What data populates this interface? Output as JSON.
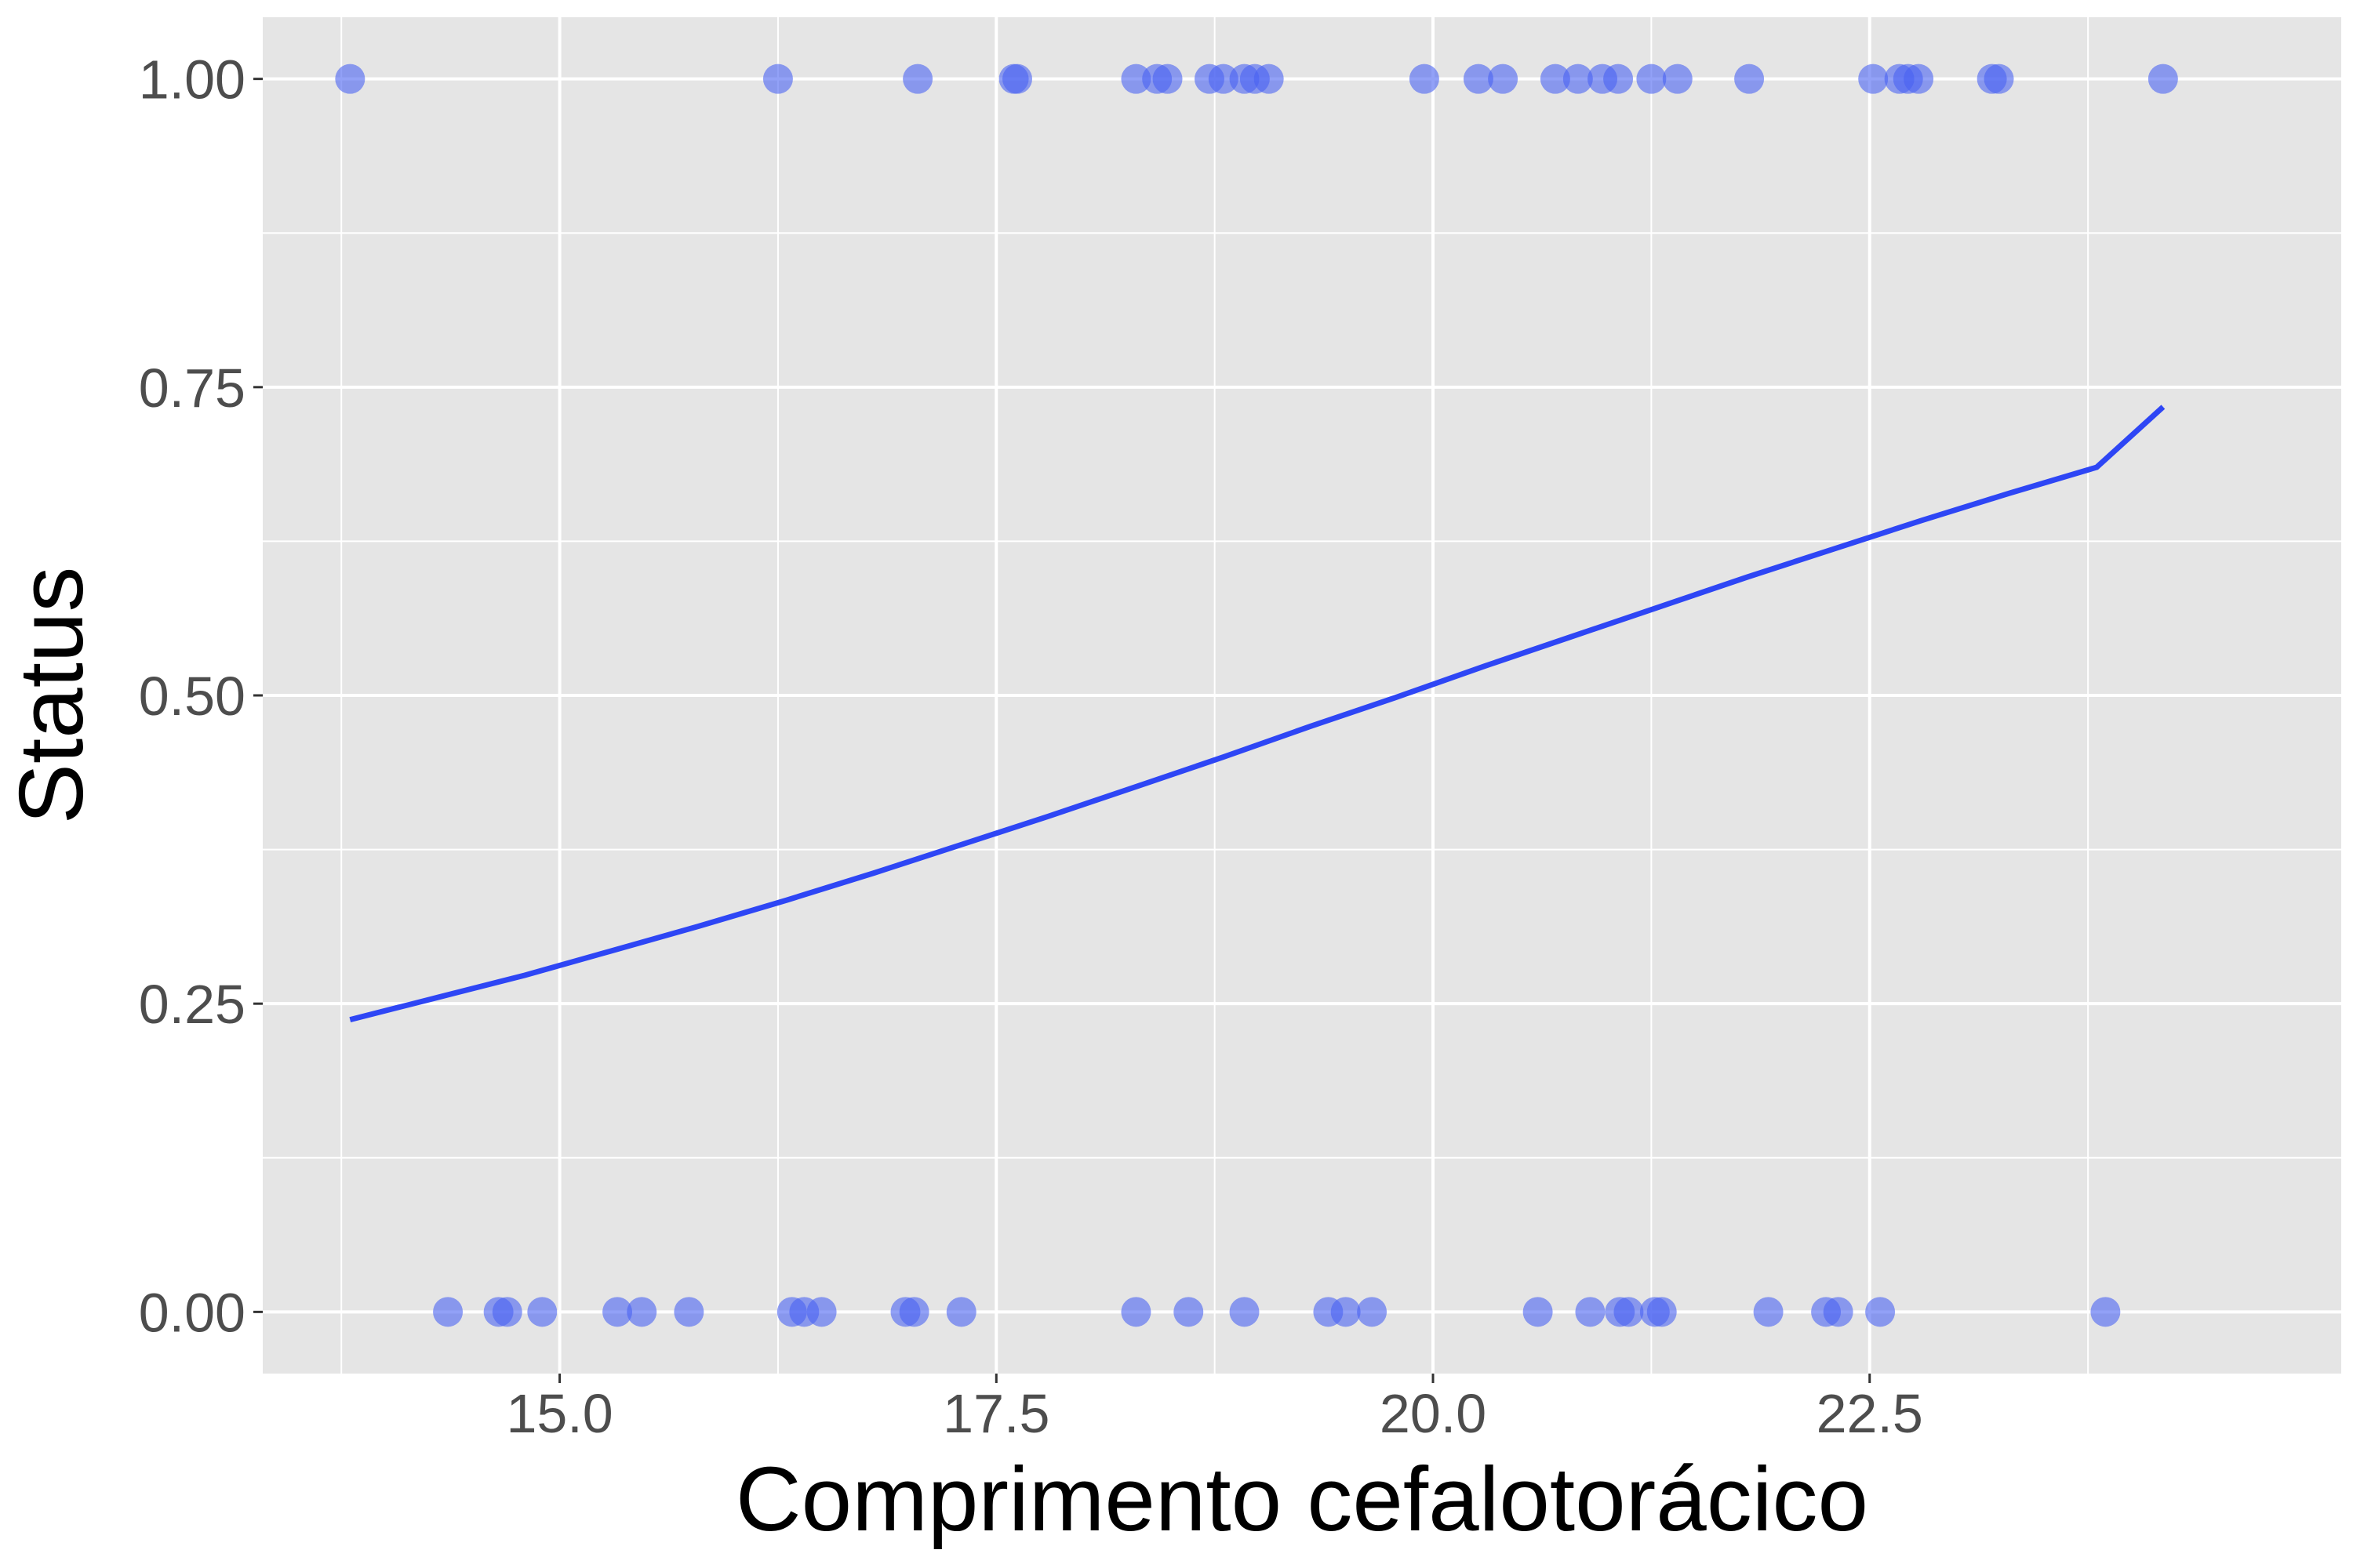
{
  "chart_data": {
    "type": "scatter",
    "title": "",
    "xlabel": "Comprimento cefalotorácico",
    "ylabel": "Status",
    "xlim": [
      13.3,
      25.2
    ],
    "ylim": [
      -0.05,
      1.05
    ],
    "x_ticks": [
      15.0,
      17.5,
      20.0,
      22.5
    ],
    "x_tick_labels": [
      "15.0",
      "17.5",
      "20.0",
      "22.5"
    ],
    "y_ticks": [
      0,
      0.25,
      0.5,
      0.75,
      1.0
    ],
    "y_tick_labels": [
      "0.00",
      "0.25",
      "0.50",
      "0.75",
      "1.00"
    ],
    "grid": true,
    "legend": "none",
    "colors": {
      "panel": "#e5e5e5",
      "grid": "#ffffff",
      "point": "#4a63f2",
      "line": "#2e46f5",
      "tick_text": "#4d4d4d",
      "tick_mark": "#333333"
    },
    "series": [
      {
        "type": "scatter",
        "points": [
          {
            "x": 13.8,
            "y": 1
          },
          {
            "x": 16.25,
            "y": 1
          },
          {
            "x": 17.05,
            "y": 1
          },
          {
            "x": 17.6,
            "y": 1
          },
          {
            "x": 17.62,
            "y": 1
          },
          {
            "x": 18.3,
            "y": 1
          },
          {
            "x": 18.42,
            "y": 1
          },
          {
            "x": 18.48,
            "y": 1
          },
          {
            "x": 18.72,
            "y": 1
          },
          {
            "x": 18.8,
            "y": 1
          },
          {
            "x": 18.92,
            "y": 1
          },
          {
            "x": 18.98,
            "y": 1
          },
          {
            "x": 19.06,
            "y": 1
          },
          {
            "x": 19.95,
            "y": 1
          },
          {
            "x": 20.26,
            "y": 1
          },
          {
            "x": 20.4,
            "y": 1
          },
          {
            "x": 20.7,
            "y": 1
          },
          {
            "x": 20.83,
            "y": 1
          },
          {
            "x": 20.97,
            "y": 1
          },
          {
            "x": 21.06,
            "y": 1
          },
          {
            "x": 21.25,
            "y": 1
          },
          {
            "x": 21.4,
            "y": 1
          },
          {
            "x": 21.81,
            "y": 1
          },
          {
            "x": 22.52,
            "y": 1
          },
          {
            "x": 22.67,
            "y": 1
          },
          {
            "x": 22.72,
            "y": 1
          },
          {
            "x": 22.78,
            "y": 1
          },
          {
            "x": 23.2,
            "y": 1
          },
          {
            "x": 23.24,
            "y": 1
          },
          {
            "x": 24.18,
            "y": 1
          },
          {
            "x": 14.36,
            "y": 0
          },
          {
            "x": 14.65,
            "y": 0
          },
          {
            "x": 14.7,
            "y": 0
          },
          {
            "x": 14.9,
            "y": 0
          },
          {
            "x": 15.33,
            "y": 0
          },
          {
            "x": 15.47,
            "y": 0
          },
          {
            "x": 15.74,
            "y": 0
          },
          {
            "x": 16.33,
            "y": 0
          },
          {
            "x": 16.4,
            "y": 0
          },
          {
            "x": 16.5,
            "y": 0
          },
          {
            "x": 16.98,
            "y": 0
          },
          {
            "x": 17.03,
            "y": 0
          },
          {
            "x": 17.3,
            "y": 0
          },
          {
            "x": 18.3,
            "y": 0
          },
          {
            "x": 18.6,
            "y": 0
          },
          {
            "x": 18.92,
            "y": 0
          },
          {
            "x": 19.4,
            "y": 0
          },
          {
            "x": 19.5,
            "y": 0
          },
          {
            "x": 19.65,
            "y": 0
          },
          {
            "x": 20.6,
            "y": 0
          },
          {
            "x": 20.9,
            "y": 0
          },
          {
            "x": 21.07,
            "y": 0
          },
          {
            "x": 21.12,
            "y": 0
          },
          {
            "x": 21.27,
            "y": 0
          },
          {
            "x": 21.31,
            "y": 0
          },
          {
            "x": 21.92,
            "y": 0
          },
          {
            "x": 22.25,
            "y": 0
          },
          {
            "x": 22.32,
            "y": 0
          },
          {
            "x": 22.56,
            "y": 0
          },
          {
            "x": 23.85,
            "y": 0
          }
        ]
      },
      {
        "type": "line",
        "points": [
          {
            "x": 13.8,
            "y": 0.237
          },
          {
            "x": 14.3,
            "y": 0.255
          },
          {
            "x": 14.8,
            "y": 0.273
          },
          {
            "x": 15.3,
            "y": 0.293
          },
          {
            "x": 15.8,
            "y": 0.313
          },
          {
            "x": 16.3,
            "y": 0.334
          },
          {
            "x": 16.8,
            "y": 0.356
          },
          {
            "x": 17.3,
            "y": 0.379
          },
          {
            "x": 17.8,
            "y": 0.402
          },
          {
            "x": 18.3,
            "y": 0.426
          },
          {
            "x": 18.8,
            "y": 0.45
          },
          {
            "x": 19.3,
            "y": 0.475
          },
          {
            "x": 19.8,
            "y": 0.499
          },
          {
            "x": 20.3,
            "y": 0.524
          },
          {
            "x": 20.8,
            "y": 0.548
          },
          {
            "x": 21.3,
            "y": 0.572
          },
          {
            "x": 21.8,
            "y": 0.596
          },
          {
            "x": 22.3,
            "y": 0.619
          },
          {
            "x": 22.8,
            "y": 0.642
          },
          {
            "x": 23.3,
            "y": 0.664
          },
          {
            "x": 23.8,
            "y": 0.685
          },
          {
            "x": 24.18,
            "y": 0.734
          }
        ]
      }
    ]
  }
}
